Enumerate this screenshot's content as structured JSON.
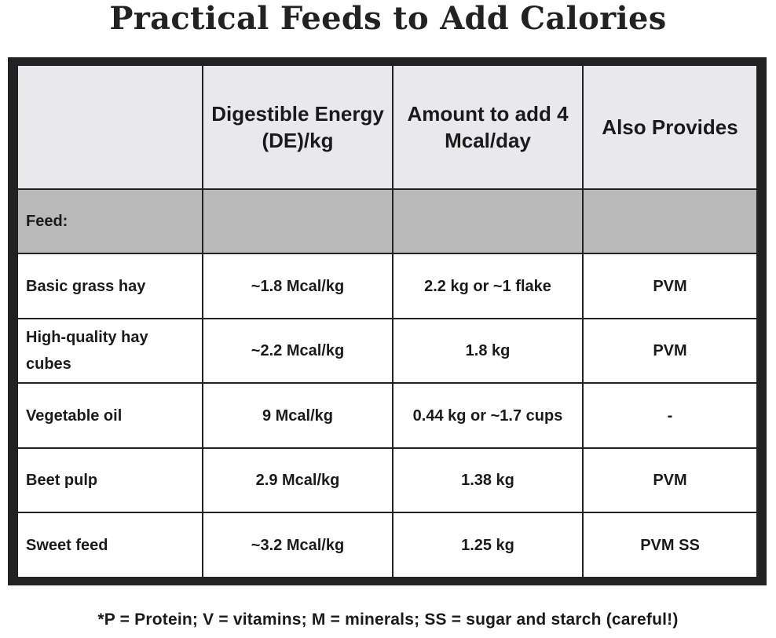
{
  "title": "Practical Feeds to Add Calories",
  "table": {
    "headers": [
      "",
      "Digestible Energy (DE)/kg",
      "Amount to add 4 Mcal/day",
      "Also Provides"
    ],
    "section_label": "Feed:",
    "rows": [
      {
        "feed": "Basic grass hay",
        "de": "~1.8 Mcal/kg",
        "amount": "2.2 kg or ~1 flake",
        "provides": "PVM"
      },
      {
        "feed": "High-quality hay cubes",
        "de": "~2.2 Mcal/kg",
        "amount": "1.8 kg",
        "provides": "PVM"
      },
      {
        "feed": "Vegetable oil",
        "de": "9 Mcal/kg",
        "amount": "0.44 kg or ~1.7 cups",
        "provides": "-"
      },
      {
        "feed": "Beet pulp",
        "de": "2.9 Mcal/kg",
        "amount": "1.38 kg",
        "provides": "PVM"
      },
      {
        "feed": "Sweet feed",
        "de": "~3.2 Mcal/kg",
        "amount": "1.25 kg",
        "provides": "PVM SS"
      }
    ]
  },
  "footnote": "*P = Protein; V = vitamins; M = minerals; SS = sugar and starch (careful!)"
}
